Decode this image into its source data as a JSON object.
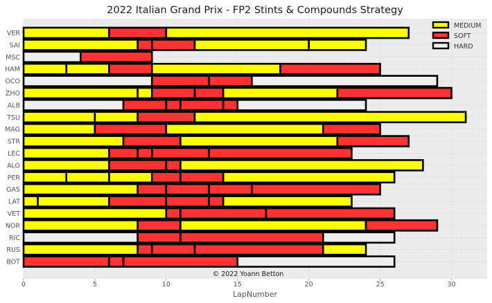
{
  "chart_data": {
    "type": "bar",
    "orientation": "horizontal-stacked",
    "title": "2022 Italian Grand Prix - FP2 Stints & Compounds Strategy",
    "xlabel": "LapNumber",
    "ylabel": "",
    "xlim": [
      0,
      32.5
    ],
    "xticks": [
      0,
      5,
      10,
      15,
      20,
      25,
      30
    ],
    "grid": true,
    "legend_position": "top-right",
    "annotation": "© 2022 Yoann Betton",
    "compound_colors": {
      "MEDIUM": "#ffff00",
      "SOFT": "#ff3333",
      "HARD": "#eeeeee"
    },
    "legend": [
      "MEDIUM",
      "SOFT",
      "HARD"
    ],
    "drivers": [
      {
        "name": "VER",
        "stints": [
          [
            "MEDIUM",
            0,
            6
          ],
          [
            "SOFT",
            6,
            10
          ],
          [
            "MEDIUM",
            10,
            27
          ]
        ]
      },
      {
        "name": "SAI",
        "stints": [
          [
            "MEDIUM",
            0,
            8
          ],
          [
            "SOFT",
            8,
            9
          ],
          [
            "SOFT",
            9,
            12
          ],
          [
            "MEDIUM",
            12,
            20
          ],
          [
            "MEDIUM",
            20,
            24
          ]
        ]
      },
      {
        "name": "MSC",
        "stints": [
          [
            "HARD",
            0,
            4
          ],
          [
            "SOFT",
            4,
            9
          ]
        ]
      },
      {
        "name": "HAM",
        "stints": [
          [
            "MEDIUM",
            0,
            3
          ],
          [
            "MEDIUM",
            3,
            6
          ],
          [
            "SOFT",
            6,
            9
          ],
          [
            "MEDIUM",
            9,
            18
          ],
          [
            "SOFT",
            18,
            25
          ]
        ]
      },
      {
        "name": "OCO",
        "stints": [
          [
            "HARD",
            0,
            9
          ],
          [
            "SOFT",
            9,
            13
          ],
          [
            "SOFT",
            13,
            16
          ],
          [
            "HARD",
            16,
            29
          ]
        ]
      },
      {
        "name": "ZHO",
        "stints": [
          [
            "MEDIUM",
            0,
            8
          ],
          [
            "MEDIUM",
            8,
            9
          ],
          [
            "SOFT",
            9,
            12
          ],
          [
            "SOFT",
            12,
            14
          ],
          [
            "MEDIUM",
            14,
            22
          ],
          [
            "SOFT",
            22,
            30
          ]
        ]
      },
      {
        "name": "ALB",
        "stints": [
          [
            "HARD",
            0,
            7
          ],
          [
            "SOFT",
            7,
            10
          ],
          [
            "SOFT",
            10,
            11
          ],
          [
            "SOFT",
            11,
            14
          ],
          [
            "SOFT",
            14,
            15
          ],
          [
            "HARD",
            15,
            24
          ]
        ]
      },
      {
        "name": "TSU",
        "stints": [
          [
            "MEDIUM",
            0,
            5
          ],
          [
            "MEDIUM",
            5,
            8
          ],
          [
            "SOFT",
            8,
            12
          ],
          [
            "MEDIUM",
            12,
            31
          ]
        ]
      },
      {
        "name": "MAG",
        "stints": [
          [
            "MEDIUM",
            0,
            5
          ],
          [
            "SOFT",
            5,
            10
          ],
          [
            "MEDIUM",
            10,
            21
          ],
          [
            "SOFT",
            21,
            25
          ]
        ]
      },
      {
        "name": "STR",
        "stints": [
          [
            "MEDIUM",
            0,
            7
          ],
          [
            "SOFT",
            7,
            11
          ],
          [
            "MEDIUM",
            11,
            22
          ],
          [
            "SOFT",
            22,
            27
          ]
        ]
      },
      {
        "name": "LEC",
        "stints": [
          [
            "MEDIUM",
            0,
            6
          ],
          [
            "SOFT",
            6,
            8
          ],
          [
            "SOFT",
            8,
            9
          ],
          [
            "SOFT",
            9,
            13
          ],
          [
            "SOFT",
            13,
            23
          ]
        ]
      },
      {
        "name": "ALO",
        "stints": [
          [
            "MEDIUM",
            0,
            6
          ],
          [
            "SOFT",
            6,
            10
          ],
          [
            "SOFT",
            10,
            11
          ],
          [
            "MEDIUM",
            11,
            28
          ]
        ]
      },
      {
        "name": "PER",
        "stints": [
          [
            "MEDIUM",
            0,
            3
          ],
          [
            "MEDIUM",
            3,
            6
          ],
          [
            "MEDIUM",
            6,
            9
          ],
          [
            "SOFT",
            9,
            11
          ],
          [
            "SOFT",
            11,
            14
          ],
          [
            "MEDIUM",
            14,
            26
          ]
        ]
      },
      {
        "name": "GAS",
        "stints": [
          [
            "MEDIUM",
            0,
            8
          ],
          [
            "SOFT",
            8,
            10
          ],
          [
            "SOFT",
            10,
            13
          ],
          [
            "SOFT",
            13,
            16
          ],
          [
            "SOFT",
            16,
            25
          ]
        ]
      },
      {
        "name": "LAT",
        "stints": [
          [
            "MEDIUM",
            0,
            1
          ],
          [
            "MEDIUM",
            1,
            6
          ],
          [
            "SOFT",
            6,
            10
          ],
          [
            "SOFT",
            10,
            13
          ],
          [
            "SOFT",
            13,
            14
          ],
          [
            "MEDIUM",
            14,
            23
          ]
        ]
      },
      {
        "name": "VET",
        "stints": [
          [
            "MEDIUM",
            0,
            10
          ],
          [
            "SOFT",
            10,
            11
          ],
          [
            "SOFT",
            11,
            17
          ],
          [
            "SOFT",
            17,
            26
          ]
        ]
      },
      {
        "name": "NOR",
        "stints": [
          [
            "MEDIUM",
            0,
            8
          ],
          [
            "SOFT",
            8,
            11
          ],
          [
            "MEDIUM",
            11,
            24
          ],
          [
            "SOFT",
            24,
            29
          ]
        ]
      },
      {
        "name": "RIC",
        "stints": [
          [
            "HARD",
            0,
            8
          ],
          [
            "SOFT",
            8,
            11
          ],
          [
            "SOFT",
            11,
            21
          ],
          [
            "HARD",
            21,
            26
          ]
        ]
      },
      {
        "name": "RUS",
        "stints": [
          [
            "MEDIUM",
            0,
            8
          ],
          [
            "SOFT",
            8,
            9
          ],
          [
            "SOFT",
            9,
            12
          ],
          [
            "SOFT",
            12,
            21
          ],
          [
            "MEDIUM",
            21,
            24
          ]
        ]
      },
      {
        "name": "BOT",
        "stints": [
          [
            "SOFT",
            0,
            6
          ],
          [
            "SOFT",
            6,
            7
          ],
          [
            "SOFT",
            7,
            15
          ],
          [
            "HARD",
            15,
            26
          ]
        ]
      }
    ]
  }
}
